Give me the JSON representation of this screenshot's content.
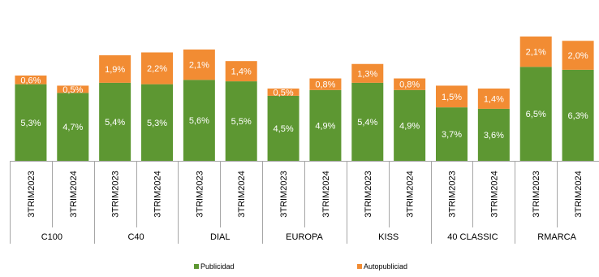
{
  "chart_data": {
    "type": "bar",
    "stacked": true,
    "groups": [
      {
        "label": "C100",
        "periods": [
          "3TRIM2023",
          "3TRIM2024"
        ]
      },
      {
        "label": "C40",
        "periods": [
          "3TRIM2023",
          "3TRIM2024"
        ]
      },
      {
        "label": "DIAL",
        "periods": [
          "3TRIM2023",
          "3TRIM2024"
        ]
      },
      {
        "label": "EUROPA",
        "periods": [
          "3TRIM2023",
          "3TRIM2024"
        ]
      },
      {
        "label": "KISS",
        "periods": [
          "3TRIM2023",
          "3TRIM2024"
        ]
      },
      {
        "label": "40 CLASSIC",
        "periods": [
          "3TRIM2023",
          "3TRIM2024"
        ]
      },
      {
        "label": "RMARCA",
        "periods": [
          "3TRIM2023",
          "3TRIM2024"
        ]
      }
    ],
    "series": [
      {
        "name": "Publicidad",
        "color": "#5d9732",
        "values": [
          5.3,
          4.7,
          5.4,
          5.3,
          5.6,
          5.5,
          4.5,
          4.9,
          5.4,
          4.9,
          3.7,
          3.6,
          6.5,
          6.3
        ],
        "labels": [
          "5,3%",
          "4,7%",
          "5,4%",
          "5,3%",
          "5,6%",
          "5,5%",
          "4,5%",
          "4,9%",
          "5,4%",
          "4,9%",
          "3,7%",
          "3,6%",
          "6,5%",
          "6,3%"
        ]
      },
      {
        "name": "Autopubliciad",
        "color": "#f28c33",
        "values": [
          0.6,
          0.5,
          1.9,
          2.2,
          2.1,
          1.4,
          0.5,
          0.8,
          1.3,
          0.8,
          1.5,
          1.4,
          2.1,
          2.0
        ],
        "labels": [
          "0,6%",
          "0,5%",
          "1,9%",
          "2,2%",
          "2,1%",
          "1,4%",
          "0,5%",
          "0,8%",
          "1,3%",
          "0,8%",
          "1,5%",
          "1,4%",
          "2,1%",
          "2,0%"
        ]
      }
    ],
    "ylim": [
      0,
      9
    ],
    "grid": false,
    "legend_position": "bottom"
  }
}
